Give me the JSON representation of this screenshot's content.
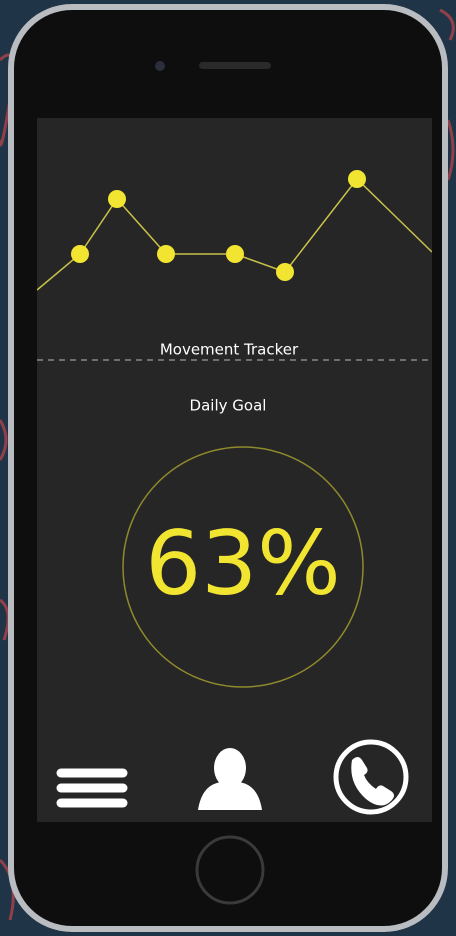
{
  "screen": {
    "chart": {
      "type": "line",
      "title": "Movement Tracker",
      "color": "#f2e531",
      "values": [
        70,
        106,
        161,
        106,
        106,
        88,
        181,
        108
      ]
    },
    "goal": {
      "label": "Daily Goal",
      "text": "63%"
    }
  }
}
